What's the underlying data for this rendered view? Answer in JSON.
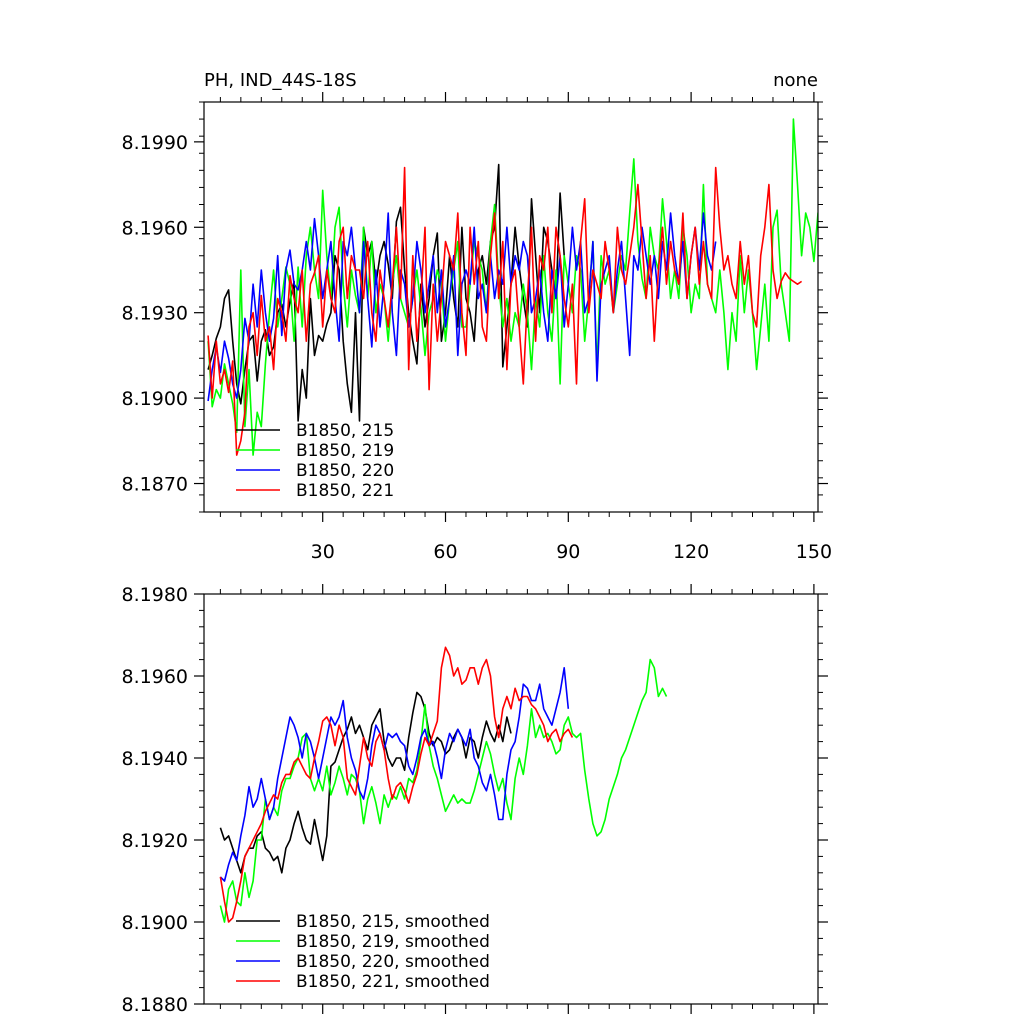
{
  "chart_data": [
    {
      "type": "line",
      "title": "PH, IND_44S-18S",
      "title_right": "none",
      "xlim": [
        1,
        151
      ],
      "ylim": [
        8.186,
        8.2004
      ],
      "xticks": [
        30,
        60,
        90,
        120,
        150
      ],
      "yticks": [
        8.187,
        8.19,
        8.193,
        8.196,
        8.199
      ],
      "ytick_labels": [
        "8.1870",
        "8.1900",
        "8.1930",
        "8.1960",
        "8.1990"
      ],
      "legend_placement": "bottom-left",
      "series": [
        {
          "name": "B1850, 215",
          "color": "#000000",
          "x_start": 2,
          "values": [
            8.191,
            8.1915,
            8.1921,
            8.1925,
            8.1935,
            8.1938,
            8.192,
            8.1905,
            8.1898,
            8.191,
            8.192,
            8.1922,
            8.1906,
            8.192,
            8.1924,
            8.1915,
            8.1918,
            8.193,
            8.1933,
            8.1925,
            8.1934,
            8.1941,
            8.1892,
            8.191,
            8.19,
            8.1935,
            8.1915,
            8.1922,
            8.192,
            8.1926,
            8.193,
            8.195,
            8.1945,
            8.192,
            8.1905,
            8.1895,
            8.193,
            8.1892,
            8.196,
            8.195,
            8.1955,
            8.194,
            8.195,
            8.1955,
            8.1947,
            8.1935,
            8.1962,
            8.1967,
            8.1945,
            8.193,
            8.192,
            8.1912,
            8.194,
            8.1925,
            8.1935,
            8.195,
            8.1958,
            8.192,
            8.193,
            8.195,
            8.1935,
            8.1925,
            8.196,
            8.1935,
            8.193,
            8.192,
            8.1945,
            8.195,
            8.194,
            8.1955,
            8.196,
            8.1982,
            8.1911,
            8.1925,
            8.194,
            8.196,
            8.1946,
            8.1935,
            8.1925,
            8.197,
            8.195,
            8.193,
            8.196,
            8.1955,
            8.1945,
            8.1935,
            8.1972,
            8.195
          ]
        },
        {
          "name": "B1850, 219",
          "color": "#00ff00",
          "x_start": 2,
          "values": [
            8.192,
            8.1897,
            8.1903,
            8.19,
            8.1912,
            8.1905,
            8.1898,
            8.1888,
            8.1945,
            8.189,
            8.191,
            8.188,
            8.1895,
            8.189,
            8.1912,
            8.193,
            8.1945,
            8.1925,
            8.1935,
            8.1946,
            8.194,
            8.192,
            8.1946,
            8.1925,
            8.195,
            8.196,
            8.1945,
            8.1935,
            8.1973,
            8.195,
            8.1935,
            8.196,
            8.1967,
            8.194,
            8.1925,
            8.1945,
            8.1936,
            8.193,
            8.196,
            8.1935,
            8.1955,
            8.193,
            8.194,
            8.1935,
            8.192,
            8.194,
            8.195,
            8.1935,
            8.193,
            8.1925,
            8.1935,
            8.1945,
            8.1932,
            8.1915,
            8.193,
            8.1935,
            8.1945,
            8.194,
            8.192,
            8.1935,
            8.1945,
            8.1955,
            8.1925,
            8.1925,
            8.194,
            8.1955,
            8.195,
            8.1945,
            8.193,
            8.1955,
            8.1968,
            8.194,
            8.1925,
            8.1935,
            8.192,
            8.193,
            8.1925,
            8.194,
            8.193,
            8.191,
            8.1935,
            8.1925,
            8.195,
            8.193,
            8.192,
            8.1945,
            8.1905,
            8.195,
            8.194,
            8.193,
            8.195,
            8.1945,
            8.192,
            8.1935,
            8.1955,
            8.191,
            8.195,
            8.194,
            8.1945,
            8.193,
            8.194,
            8.195,
            8.1945,
            8.1965,
            8.1984,
            8.1955,
            8.1942,
            8.1935,
            8.196,
            8.195,
            8.1945,
            8.197,
            8.1955,
            8.1935,
            8.1945,
            8.1935,
            8.196,
            8.195,
            8.193,
            8.194,
            8.1935,
            8.1975,
            8.194,
            8.1935,
            8.193,
            8.1945,
            8.193,
            8.191,
            8.193,
            8.192,
            8.195,
            8.193,
            8.1945,
            8.193,
            8.191,
            8.1925,
            8.194,
            8.192,
            8.196,
            8.1966,
            8.194,
            8.193,
            8.192,
            8.1998,
            8.1975,
            8.195,
            8.1965,
            8.196,
            8.1948,
            8.1965,
            8.196,
            8.1966,
            8.1958,
            8.1965,
            8.196,
            8.1944
          ]
        },
        {
          "name": "B1850, 220",
          "color": "#0000ff",
          "x_start": 2,
          "values": [
            8.1899,
            8.191,
            8.1918,
            8.1909,
            8.192,
            8.1914,
            8.1905,
            8.19,
            8.191,
            8.1928,
            8.192,
            8.194,
            8.1925,
            8.1945,
            8.193,
            8.192,
            8.1928,
            8.195,
            8.1922,
            8.1945,
            8.1952,
            8.194,
            8.1938,
            8.1945,
            8.1955,
            8.1945,
            8.1963,
            8.195,
            8.1935,
            8.1945,
            8.1955,
            8.1935,
            8.192,
            8.1955,
            8.195,
            8.196,
            8.1945,
            8.193,
            8.1955,
            8.1935,
            8.1918,
            8.1945,
            8.1925,
            8.194,
            8.1965,
            8.193,
            8.1915,
            8.1945,
            8.194,
            8.1925,
            8.1935,
            8.1955,
            8.1945,
            8.193,
            8.194,
            8.195,
            8.193,
            8.1945,
            8.1925,
            8.1935,
            8.195,
            8.1915,
            8.194,
            8.1945,
            8.194,
            8.196,
            8.1935,
            8.194,
            8.193,
            8.195,
            8.1935,
            8.1945,
            8.194,
            8.196,
            8.194,
            8.195,
            8.1945,
            8.1955,
            8.195,
            8.193,
            8.1935,
            8.1945,
            8.193,
            8.192,
            8.1945,
            8.1935,
            8.195,
            8.1925,
            8.194,
            8.196,
            8.1945,
            8.1955,
            8.193,
            8.1935,
            8.1955,
            8.1906,
            8.194,
            8.1945,
            8.195,
            8.193,
            8.1945,
            8.1955,
            8.1935,
            8.1915,
            8.195,
            8.1945,
            8.196,
            8.195,
            8.194,
            8.195,
            8.1935,
            8.1955,
            8.1945,
            8.1965,
            8.195,
            8.194,
            8.1955,
            8.1935,
            8.195,
            8.196,
            8.1945,
            8.1965,
            8.195,
            8.1945,
            8.1955
          ]
        },
        {
          "name": "B1850, 221",
          "color": "#ff0000",
          "x_start": 2,
          "values": [
            8.1922,
            8.19,
            8.192,
            8.1905,
            8.191,
            8.1902,
            8.1913,
            8.188,
            8.1885,
            8.1895,
            8.1925,
            8.193,
            8.1915,
            8.1936,
            8.192,
            8.1925,
            8.191,
            8.1935,
            8.193,
            8.192,
            8.1943,
            8.1935,
            8.193,
            8.1945,
            8.192,
            8.194,
            8.1944,
            8.195,
            8.1925,
            8.1945,
            8.1935,
            8.193,
            8.1955,
            8.196,
            8.1935,
            8.195,
            8.1945,
            8.1945,
            8.1935,
            8.1955,
            8.193,
            8.192,
            8.1945,
            8.1935,
            8.1925,
            8.194,
            8.196,
            8.1935,
            8.1981,
            8.191,
            8.195,
            8.192,
            8.1935,
            8.196,
            8.1903,
            8.194,
            8.192,
            8.1935,
            8.1955,
            8.195,
            8.1945,
            8.1965,
            8.193,
            8.1915,
            8.196,
            8.194,
            8.1955,
            8.1925,
            8.192,
            8.195,
            8.1965,
            8.1935,
            8.1955,
            8.191,
            8.194,
            8.1945,
            8.1925,
            8.1905,
            8.1935,
            8.196,
            8.192,
            8.195,
            8.1945,
            8.196,
            8.193,
            8.196,
            8.195,
            8.1935,
            8.1925,
            8.194,
            8.1905,
            8.1955,
            8.197,
            8.193,
            8.1945,
            8.194,
            8.1935,
            8.1955,
            8.1945,
            8.193,
            8.196,
            8.1945,
            8.194,
            8.195,
            8.196,
            8.1975,
            8.1955,
            8.1935,
            8.195,
            8.192,
            8.1945,
            8.196,
            8.194,
            8.1955,
            8.1945,
            8.194,
            8.1965,
            8.1935,
            8.195,
            8.196,
            8.194,
            8.1955,
            8.194,
            8.1935,
            8.1981,
            8.196,
            8.1945,
            8.195,
            8.194,
            8.1935,
            8.1955,
            8.194,
            8.195,
            8.193,
            8.1925,
            8.195,
            8.196,
            8.1975,
            8.1945,
            8.1935,
            8.1941,
            8.1944,
            8.1942,
            8.1941,
            8.194,
            8.1941
          ]
        }
      ]
    },
    {
      "type": "line",
      "xlim": [
        1,
        151
      ],
      "ylim": [
        8.188,
        8.198
      ],
      "xticks": [
        30,
        60,
        90,
        120,
        150
      ],
      "yticks": [
        8.188,
        8.19,
        8.192,
        8.194,
        8.196,
        8.198
      ],
      "ytick_labels": [
        "8.1880",
        "8.1900",
        "8.1920",
        "8.1940",
        "8.1960",
        "8.1980"
      ],
      "legend_placement": "bottom-left",
      "series": [
        {
          "name": "B1850, 215, smoothed",
          "color": "#000000",
          "x_start": 5,
          "values": [
            8.1923,
            8.192,
            8.1921,
            8.1918,
            8.1915,
            8.1912,
            8.1916,
            8.1918,
            8.1918,
            8.1921,
            8.1922,
            8.1918,
            8.1917,
            8.1915,
            8.1916,
            8.1912,
            8.1918,
            8.192,
            8.1924,
            8.1927,
            8.1923,
            8.192,
            8.1919,
            8.1925,
            8.192,
            8.1915,
            8.1921,
            8.1938,
            8.1939,
            8.1942,
            8.1945,
            8.1947,
            8.195,
            8.1946,
            8.1948,
            8.1945,
            8.1942,
            8.1948,
            8.195,
            8.1952,
            8.1944,
            8.194,
            8.1938,
            8.194,
            8.194,
            8.1937,
            8.1945,
            8.1951,
            8.1956,
            8.1955,
            8.1952,
            8.1946,
            8.1943,
            8.1945,
            8.1944,
            8.1941,
            8.1942,
            8.1945,
            8.1947,
            8.1945,
            8.194,
            8.1945,
            8.1944,
            8.194,
            8.1945,
            8.1949,
            8.1946,
            8.1944,
            8.1948,
            8.1944,
            8.195,
            8.1946
          ]
        },
        {
          "name": "B1850, 219, smoothed",
          "color": "#00ff00",
          "x_start": 5,
          "values": [
            8.1904,
            8.19,
            8.1908,
            8.191,
            8.1905,
            8.1904,
            8.1912,
            8.1906,
            8.191,
            8.192,
            8.192,
            8.193,
            8.1925,
            8.1928,
            8.1926,
            8.1932,
            8.1935,
            8.1935,
            8.1938,
            8.194,
            8.1945,
            8.1946,
            8.1935,
            8.1932,
            8.1935,
            8.1932,
            8.1938,
            8.1931,
            8.1934,
            8.1938,
            8.1935,
            8.1931,
            8.1936,
            8.1935,
            8.1932,
            8.1924,
            8.193,
            8.1933,
            8.1929,
            8.1924,
            8.1931,
            8.1928,
            8.1931,
            8.193,
            8.1933,
            8.193,
            8.1935,
            8.1934,
            8.1937,
            8.1944,
            8.1953,
            8.1943,
            8.1938,
            8.1935,
            8.1931,
            8.1927,
            8.1929,
            8.1931,
            8.1929,
            8.193,
            8.1929,
            8.1929,
            8.1932,
            8.1936,
            8.194,
            8.1944,
            8.1941,
            8.1936,
            8.1932,
            8.1935,
            8.1929,
            8.1925,
            8.1935,
            8.194,
            8.1936,
            8.1943,
            8.1952,
            8.1945,
            8.1948,
            8.1945,
            8.1946,
            8.1944,
            8.1941,
            8.1942,
            8.1948,
            8.195,
            8.1946,
            8.1945,
            8.1946,
            8.1937,
            8.193,
            8.1924,
            8.1921,
            8.1922,
            8.1925,
            8.193,
            8.1933,
            8.1936,
            8.194,
            8.1942,
            8.1945,
            8.1948,
            8.1951,
            8.1954,
            8.1956,
            8.1964,
            8.1962,
            8.1955,
            8.1957,
            8.1955
          ]
        },
        {
          "name": "B1850, 220, smoothed",
          "color": "#0000ff",
          "x_start": 5,
          "values": [
            8.1911,
            8.191,
            8.1914,
            8.1917,
            8.1915,
            8.1921,
            8.1926,
            8.1933,
            8.1928,
            8.193,
            8.1935,
            8.193,
            8.1925,
            8.1928,
            8.1935,
            8.194,
            8.1945,
            8.195,
            8.1948,
            8.1945,
            8.194,
            8.1946,
            8.1944,
            8.194,
            8.1935,
            8.194,
            8.1945,
            8.195,
            8.1948,
            8.195,
            8.1954,
            8.1945,
            8.194,
            8.1937,
            8.1932,
            8.193,
            8.1935,
            8.1943,
            8.1948,
            8.1946,
            8.1942,
            8.1946,
            8.1945,
            8.1946,
            8.1944,
            8.1943,
            8.1938,
            8.1936,
            8.194,
            8.1945,
            8.1947,
            8.1943,
            8.1944,
            8.194,
            8.1935,
            8.1942,
            8.1946,
            8.1944,
            8.1947,
            8.1945,
            8.1943,
            8.1947,
            8.194,
            8.1938,
            8.1934,
            8.1932,
            8.1936,
            8.1931,
            8.1925,
            8.1925,
            8.1936,
            8.1942,
            8.1944,
            8.195,
            8.1958,
            8.1957,
            8.1954,
            8.1954,
            8.1958,
            8.1952,
            8.195,
            8.1948,
            8.1952,
            8.1956,
            8.1962,
            8.1952
          ]
        },
        {
          "name": "B1850, 221, smoothed",
          "color": "#ff0000",
          "x_start": 5,
          "values": [
            8.1911,
            8.1905,
            8.19,
            8.1901,
            8.1905,
            8.191,
            8.1916,
            8.1918,
            8.192,
            8.1922,
            8.1924,
            8.1927,
            8.1929,
            8.1931,
            8.193,
            8.1934,
            8.1936,
            8.1936,
            8.1939,
            8.194,
            8.1938,
            8.1936,
            8.1935,
            8.194,
            8.1944,
            8.1949,
            8.195,
            8.1948,
            8.1943,
            8.1948,
            8.1945,
            8.1935,
            8.1933,
            8.1931,
            8.1938,
            8.1945,
            8.194,
            8.1938,
            8.1944,
            8.1946,
            8.1942,
            8.1935,
            8.193,
            8.1933,
            8.1934,
            8.1932,
            8.1929,
            8.1933,
            8.1936,
            8.1941,
            8.1945,
            8.1943,
            8.1946,
            8.1949,
            8.1962,
            8.1967,
            8.1965,
            8.196,
            8.1962,
            8.1958,
            8.1959,
            8.1962,
            8.1962,
            8.1958,
            8.1962,
            8.1964,
            8.196,
            8.195,
            8.1945,
            8.1952,
            8.1955,
            8.1952,
            8.1957,
            8.1954,
            8.1955,
            8.1955,
            8.1953,
            8.1952,
            8.195,
            8.1948,
            8.1944,
            8.1946,
            8.1947,
            8.1944,
            8.1946,
            8.1947,
            8.1945
          ]
        }
      ]
    }
  ]
}
